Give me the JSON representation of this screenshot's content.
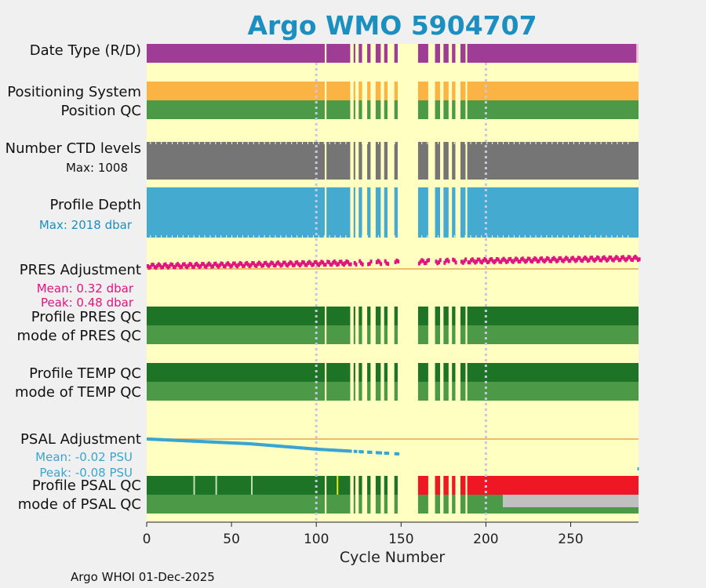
{
  "chart_data": {
    "type": "timeline",
    "title": "Argo WMO 5904707",
    "xlabel": "Cycle Number",
    "xlim": [
      0,
      290
    ],
    "xticks": [
      0,
      50,
      100,
      150,
      200,
      250
    ],
    "footer": "Argo WHOI 01-Dec-2025",
    "cycle_segments": [
      [
        0,
        105
      ],
      [
        106,
        120
      ],
      [
        122,
        123
      ],
      [
        125,
        127
      ],
      [
        130,
        132
      ],
      [
        135,
        138
      ],
      [
        140,
        142
      ],
      [
        146,
        148
      ],
      [
        160,
        166
      ],
      [
        170,
        173
      ],
      [
        175,
        178
      ],
      [
        180,
        182
      ],
      [
        185,
        188
      ],
      [
        189,
        290
      ]
    ],
    "reference_cycles": [
      100,
      200
    ],
    "rows": [
      {
        "label": "Date Type (R/D)",
        "color": "#9e3c96",
        "note": "real-time throughout; delayed-mode at the final cycle"
      },
      {
        "label": "Positioning System",
        "color": "#fbb343"
      },
      {
        "label": "Position QC",
        "color": "#4c9a47"
      },
      {
        "label": "Number CTD levels",
        "sublabel": "Max: 1008",
        "color": "#757575"
      },
      {
        "label": "Profile Depth",
        "sublabel": "Max: 2018 dbar",
        "color": "#44aacf"
      },
      {
        "label": "PRES Adjustment",
        "sublabel_lines": [
          "Mean: 0.32 dbar",
          "Peak: 0.48 dbar"
        ],
        "color": "#e1137f",
        "mean": 0.32,
        "peak": 0.48
      },
      {
        "label": "Profile PRES QC",
        "color": "#1e7426"
      },
      {
        "label": "mode of PRES QC",
        "color": "#4c9a47"
      },
      {
        "label": "Profile TEMP QC",
        "color": "#1e7426"
      },
      {
        "label": "mode of TEMP QC",
        "color": "#4c9a47"
      },
      {
        "label": "PSAL Adjustment",
        "sublabel_lines": [
          "Mean: -0.02 PSU",
          "Peak: -0.08 PSU"
        ],
        "color": "#3aa5d0",
        "mean": -0.02,
        "peak": -0.08
      },
      {
        "label": "Profile PSAL QC",
        "color": "#1e7426",
        "flagged_color": "#f01725",
        "flagged_from_cycle": 160,
        "note": "cycles 160-290 flagged bad"
      },
      {
        "label": "mode of PSAL QC",
        "color": "#4c9a47",
        "flagged_color": "#c0c0c0",
        "flagged_from_cycle": 210
      }
    ]
  },
  "colors": {
    "panel_bg": "#ffffc2",
    "figure_bg": "#f0f0f0",
    "title": "#1a8fc0",
    "reference_line": "#e6a84d",
    "vline": "#c7c7e0"
  }
}
